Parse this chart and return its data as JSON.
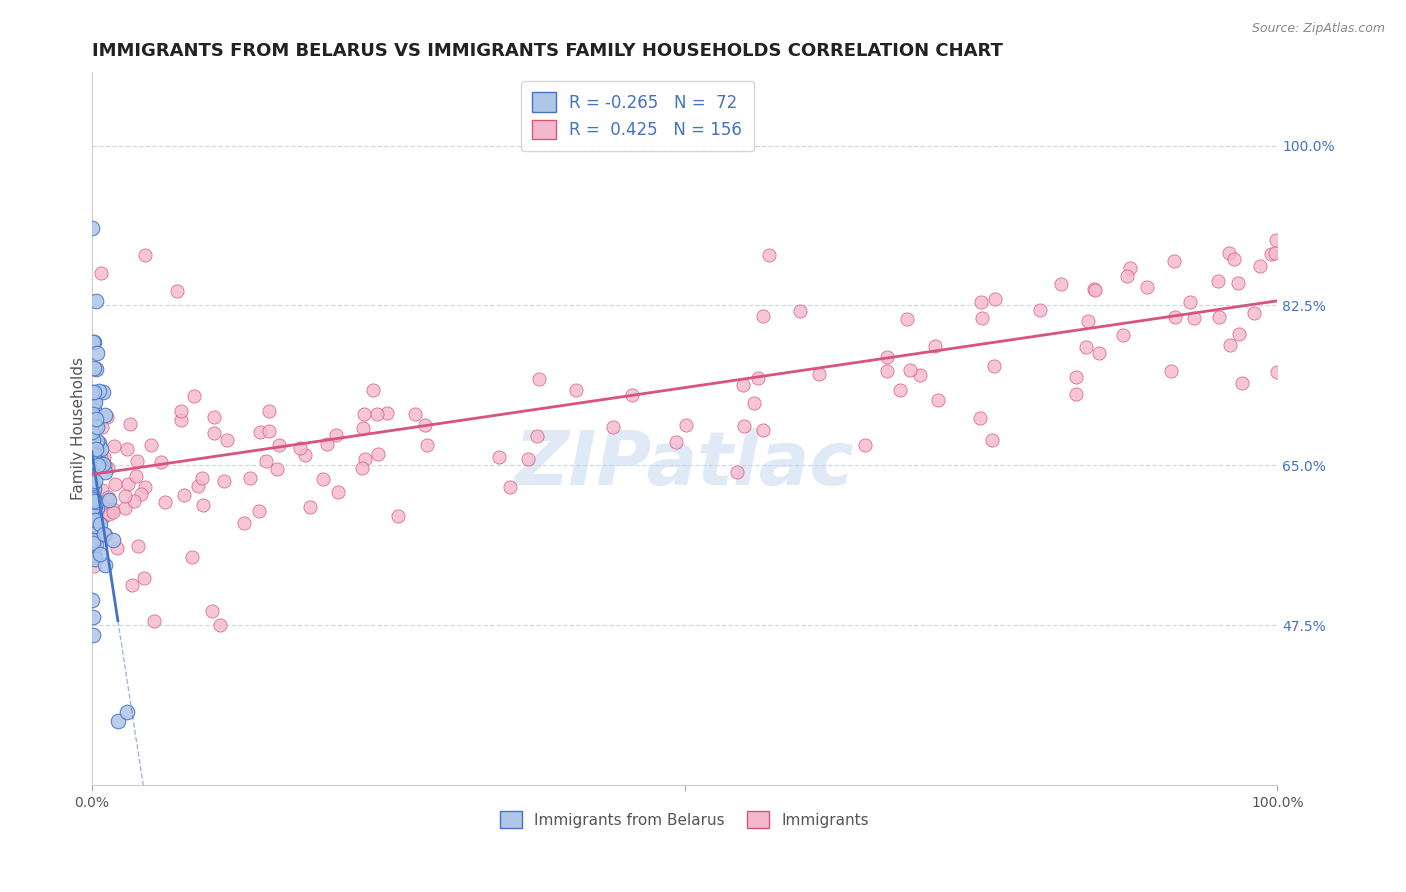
{
  "title": "IMMIGRANTS FROM BELARUS VS IMMIGRANTS FAMILY HOUSEHOLDS CORRELATION CHART",
  "source": "Source: ZipAtlas.com",
  "ylabel": "Family Households",
  "legend_label1": "Immigrants from Belarus",
  "legend_label2": "Immigrants",
  "r1": -0.265,
  "n1": 72,
  "r2": 0.425,
  "n2": 156,
  "color1": "#aec6e8",
  "color2": "#f4b8cc",
  "line_color1": "#4472c4",
  "line_color2": "#d9547a",
  "watermark_color": "#c8d8f0",
  "xmin": 0.0,
  "xmax": 100.0,
  "ymin": 30.0,
  "ymax": 108.0,
  "ytick_right": [
    47.5,
    65.0,
    82.5,
    100.0
  ],
  "ytick_right_labels": [
    "47.5%",
    "65.0%",
    "82.5%",
    "100.0%"
  ],
  "grid_color": "#d0d8e8",
  "title_fontsize": 13,
  "axis_label_fontsize": 11,
  "tick_fontsize": 10,
  "legend_fontsize": 12
}
